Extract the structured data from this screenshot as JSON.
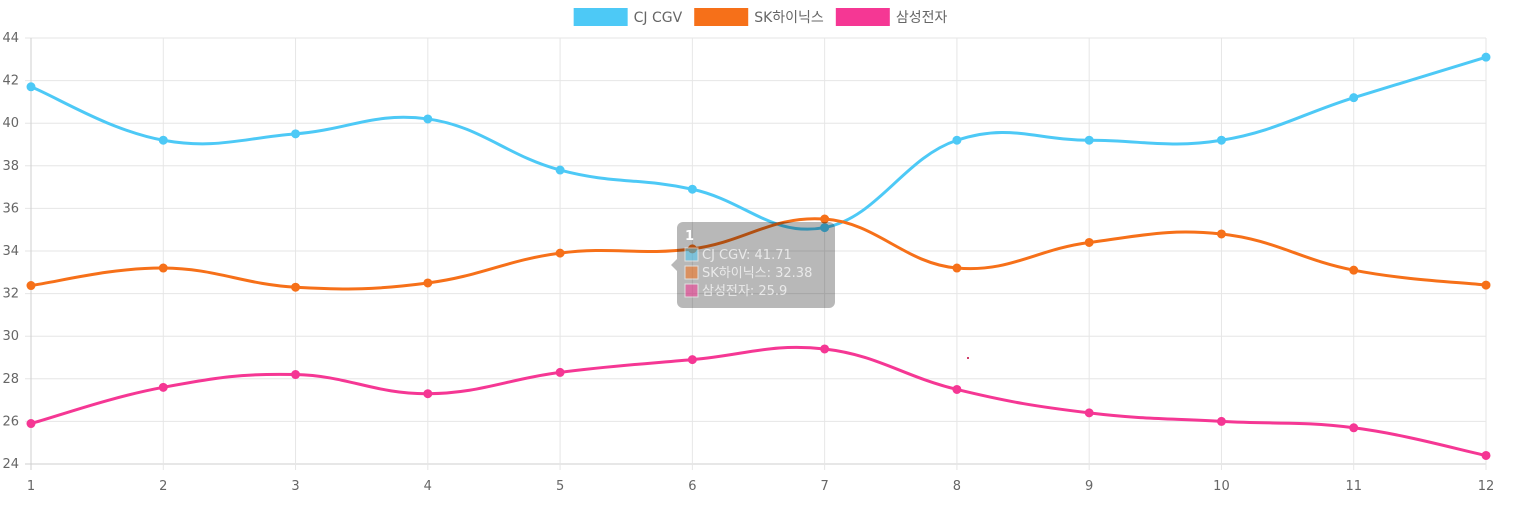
{
  "chart_data": {
    "type": "line",
    "x": [
      1,
      2,
      3,
      4,
      5,
      6,
      7,
      8,
      9,
      10,
      11,
      12
    ],
    "ylim": [
      24,
      44
    ],
    "yticks": [
      24,
      26,
      28,
      30,
      32,
      34,
      36,
      38,
      40,
      42,
      44
    ],
    "grid": true,
    "legend_position": "top-center",
    "series": [
      {
        "name": "CJ CGV",
        "color": "#4dc9f6",
        "values": [
          41.71,
          39.2,
          39.5,
          40.2,
          37.8,
          36.9,
          35.1,
          39.2,
          39.2,
          39.2,
          41.2,
          43.1
        ]
      },
      {
        "name": "SK하이닉스",
        "color": "#f67019",
        "values": [
          32.38,
          33.2,
          32.3,
          32.5,
          33.9,
          34.1,
          35.5,
          33.2,
          34.4,
          34.8,
          33.1,
          32.4
        ]
      },
      {
        "name": "삼성전자",
        "color": "#f53794",
        "values": [
          25.9,
          27.6,
          28.2,
          27.3,
          28.3,
          28.9,
          29.4,
          27.5,
          26.4,
          26.0,
          25.7,
          24.4
        ]
      }
    ],
    "tooltip": {
      "title": "1",
      "lines": [
        "CJ CGV: 41.71",
        "SK하이닉스: 32.38",
        "삼성전자: 25.9"
      ]
    }
  }
}
